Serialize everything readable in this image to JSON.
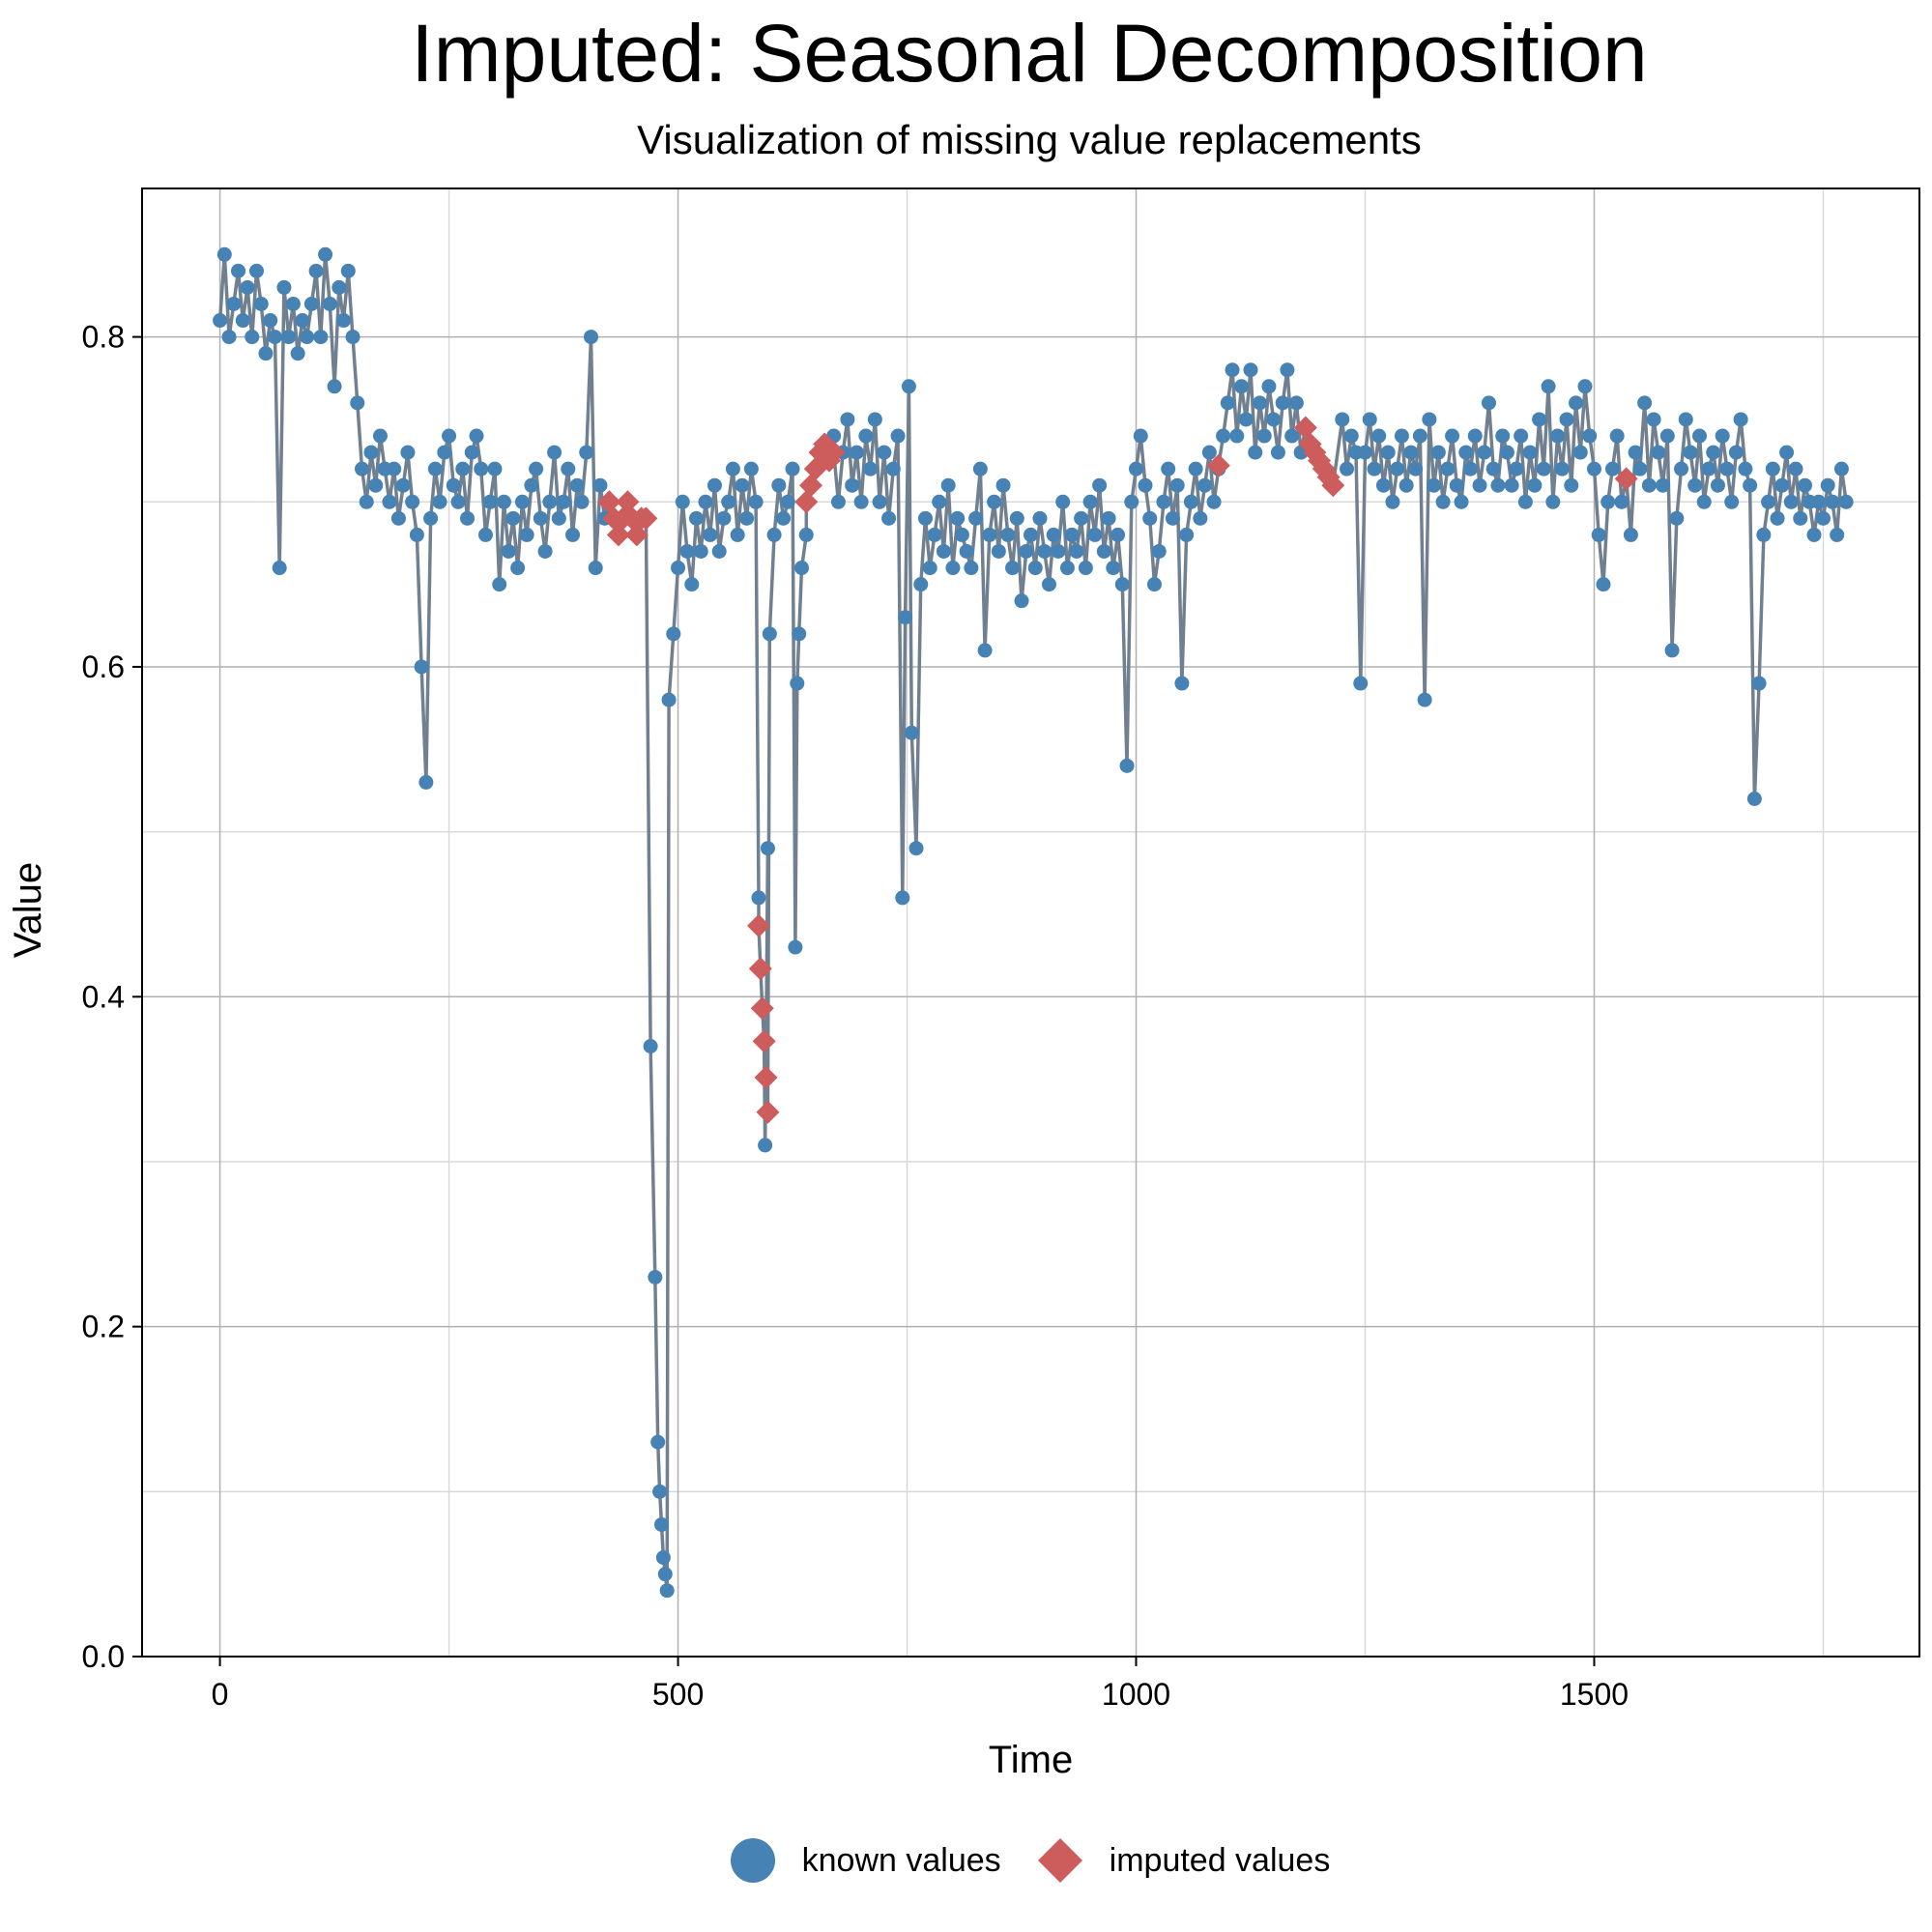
{
  "chart_data": {
    "type": "scatter",
    "title": "Imputed: Seasonal Decomposition",
    "subtitle": "Visualization of missing value replacements",
    "xlabel": "Time",
    "ylabel": "Value",
    "xlim": [
      -85,
      1855
    ],
    "ylim": [
      0.0,
      0.89
    ],
    "x_ticks": [
      0,
      500,
      1000,
      1500
    ],
    "x_tick_labels": [
      "0",
      "500",
      "1000",
      "1500"
    ],
    "y_ticks": [
      0.0,
      0.2,
      0.4,
      0.6,
      0.8
    ],
    "y_tick_labels": [
      "0.0",
      "0.2",
      "0.4",
      "0.6",
      "0.8"
    ],
    "grid": true,
    "legend_position": "bottom",
    "series": [
      {
        "name": "known values",
        "marker": "circle",
        "color": "#4682B4",
        "line_color": "#708090",
        "x": [
          0,
          5,
          10,
          15,
          20,
          25,
          30,
          35,
          40,
          45,
          50,
          55,
          60,
          65,
          70,
          75,
          80,
          85,
          90,
          95,
          100,
          105,
          110,
          115,
          120,
          125,
          130,
          135,
          140,
          145,
          150,
          155,
          160,
          165,
          170,
          175,
          180,
          185,
          190,
          195,
          200,
          205,
          210,
          215,
          220,
          225,
          230,
          235,
          240,
          245,
          250,
          255,
          260,
          265,
          270,
          275,
          280,
          285,
          290,
          295,
          300,
          305,
          310,
          315,
          320,
          325,
          330,
          335,
          340,
          345,
          350,
          355,
          360,
          365,
          370,
          375,
          380,
          385,
          390,
          395,
          400,
          405,
          410,
          415,
          420,
          470,
          475,
          478,
          480,
          482,
          484,
          486,
          488,
          490,
          495,
          500,
          505,
          510,
          515,
          520,
          525,
          530,
          535,
          540,
          545,
          550,
          555,
          560,
          565,
          570,
          575,
          580,
          585,
          588,
          595,
          598,
          600,
          605,
          610,
          615,
          620,
          625,
          628,
          630,
          632,
          635,
          640,
          670,
          675,
          680,
          685,
          690,
          695,
          700,
          705,
          710,
          715,
          720,
          725,
          730,
          735,
          740,
          745,
          748,
          752,
          755,
          760,
          765,
          770,
          775,
          780,
          785,
          790,
          795,
          800,
          805,
          810,
          815,
          820,
          825,
          830,
          835,
          840,
          845,
          850,
          855,
          860,
          865,
          870,
          875,
          880,
          885,
          890,
          895,
          900,
          905,
          910,
          915,
          920,
          925,
          930,
          935,
          940,
          945,
          950,
          955,
          960,
          965,
          970,
          975,
          980,
          985,
          990,
          995,
          1000,
          1005,
          1010,
          1015,
          1020,
          1025,
          1030,
          1035,
          1040,
          1045,
          1050,
          1055,
          1060,
          1065,
          1070,
          1075,
          1080,
          1085,
          1090,
          1095,
          1100,
          1105,
          1110,
          1115,
          1120,
          1125,
          1130,
          1135,
          1140,
          1145,
          1150,
          1155,
          1160,
          1165,
          1170,
          1175,
          1180,
          1225,
          1230,
          1235,
          1240,
          1245,
          1250,
          1255,
          1260,
          1265,
          1270,
          1275,
          1280,
          1285,
          1290,
          1295,
          1300,
          1305,
          1310,
          1315,
          1320,
          1325,
          1330,
          1335,
          1340,
          1345,
          1350,
          1355,
          1360,
          1365,
          1370,
          1375,
          1380,
          1385,
          1390,
          1395,
          1400,
          1405,
          1410,
          1415,
          1420,
          1425,
          1430,
          1435,
          1440,
          1445,
          1450,
          1455,
          1460,
          1465,
          1470,
          1475,
          1480,
          1485,
          1490,
          1495,
          1500,
          1505,
          1510,
          1515,
          1520,
          1525,
          1530,
          1540,
          1545,
          1550,
          1555,
          1560,
          1565,
          1570,
          1575,
          1580,
          1585,
          1590,
          1595,
          1600,
          1605,
          1610,
          1615,
          1620,
          1625,
          1630,
          1635,
          1640,
          1645,
          1650,
          1655,
          1660,
          1665,
          1670,
          1675,
          1680,
          1685,
          1690,
          1695,
          1700,
          1705,
          1710,
          1715,
          1720,
          1725,
          1730,
          1735,
          1740,
          1745,
          1750,
          1755,
          1760,
          1765,
          1770,
          1775
        ],
        "y": [
          0.81,
          0.85,
          0.8,
          0.82,
          0.84,
          0.81,
          0.83,
          0.8,
          0.84,
          0.82,
          0.79,
          0.81,
          0.8,
          0.66,
          0.83,
          0.8,
          0.82,
          0.79,
          0.81,
          0.8,
          0.82,
          0.84,
          0.8,
          0.85,
          0.82,
          0.77,
          0.83,
          0.81,
          0.84,
          0.8,
          0.76,
          0.72,
          0.7,
          0.73,
          0.71,
          0.74,
          0.72,
          0.7,
          0.72,
          0.69,
          0.71,
          0.73,
          0.7,
          0.68,
          0.6,
          0.53,
          0.69,
          0.72,
          0.7,
          0.73,
          0.74,
          0.71,
          0.7,
          0.72,
          0.69,
          0.73,
          0.74,
          0.72,
          0.68,
          0.7,
          0.72,
          0.65,
          0.7,
          0.67,
          0.69,
          0.66,
          0.7,
          0.68,
          0.71,
          0.72,
          0.69,
          0.67,
          0.7,
          0.73,
          0.69,
          0.7,
          0.72,
          0.68,
          0.71,
          0.7,
          0.73,
          0.8,
          0.66,
          0.71,
          0.69,
          0.37,
          0.23,
          0.13,
          0.1,
          0.08,
          0.06,
          0.05,
          0.04,
          0.58,
          0.62,
          0.66,
          0.7,
          0.67,
          0.65,
          0.69,
          0.67,
          0.7,
          0.68,
          0.71,
          0.67,
          0.69,
          0.7,
          0.72,
          0.68,
          0.71,
          0.69,
          0.72,
          0.7,
          0.46,
          0.31,
          0.49,
          0.62,
          0.68,
          0.71,
          0.69,
          0.7,
          0.72,
          0.43,
          0.59,
          0.62,
          0.66,
          0.68,
          0.74,
          0.7,
          0.73,
          0.75,
          0.71,
          0.73,
          0.7,
          0.74,
          0.72,
          0.75,
          0.7,
          0.73,
          0.69,
          0.72,
          0.74,
          0.46,
          0.63,
          0.77,
          0.56,
          0.49,
          0.65,
          0.69,
          0.66,
          0.68,
          0.7,
          0.67,
          0.71,
          0.66,
          0.69,
          0.68,
          0.67,
          0.66,
          0.69,
          0.72,
          0.61,
          0.68,
          0.7,
          0.67,
          0.71,
          0.68,
          0.66,
          0.69,
          0.64,
          0.67,
          0.68,
          0.66,
          0.69,
          0.67,
          0.65,
          0.68,
          0.67,
          0.7,
          0.66,
          0.68,
          0.67,
          0.69,
          0.66,
          0.7,
          0.68,
          0.71,
          0.67,
          0.69,
          0.66,
          0.68,
          0.65,
          0.54,
          0.7,
          0.72,
          0.74,
          0.71,
          0.69,
          0.65,
          0.67,
          0.7,
          0.72,
          0.69,
          0.71,
          0.59,
          0.68,
          0.7,
          0.72,
          0.69,
          0.71,
          0.73,
          0.7,
          0.72,
          0.74,
          0.76,
          0.78,
          0.74,
          0.77,
          0.75,
          0.78,
          0.73,
          0.76,
          0.74,
          0.77,
          0.75,
          0.73,
          0.76,
          0.78,
          0.74,
          0.76,
          0.73,
          0.75,
          0.72,
          0.74,
          0.73,
          0.59,
          0.73,
          0.75,
          0.72,
          0.74,
          0.71,
          0.73,
          0.7,
          0.72,
          0.74,
          0.71,
          0.73,
          0.72,
          0.74,
          0.58,
          0.75,
          0.71,
          0.73,
          0.7,
          0.72,
          0.74,
          0.71,
          0.7,
          0.73,
          0.72,
          0.74,
          0.71,
          0.73,
          0.76,
          0.72,
          0.71,
          0.74,
          0.73,
          0.71,
          0.72,
          0.74,
          0.7,
          0.73,
          0.71,
          0.75,
          0.72,
          0.77,
          0.7,
          0.74,
          0.72,
          0.75,
          0.71,
          0.76,
          0.73,
          0.77,
          0.74,
          0.72,
          0.68,
          0.65,
          0.7,
          0.72,
          0.74,
          0.7,
          0.68,
          0.73,
          0.72,
          0.76,
          0.71,
          0.75,
          0.73,
          0.71,
          0.74,
          0.61,
          0.69,
          0.72,
          0.75,
          0.73,
          0.71,
          0.74,
          0.7,
          0.72,
          0.73,
          0.71,
          0.74,
          0.72,
          0.7,
          0.73,
          0.75,
          0.72,
          0.71,
          0.52,
          0.59,
          0.68,
          0.7,
          0.72,
          0.69,
          0.71,
          0.73,
          0.7,
          0.72,
          0.69,
          0.71,
          0.7,
          0.68,
          0.7,
          0.69,
          0.71,
          0.7,
          0.68,
          0.72,
          0.7
        ]
      },
      {
        "name": "imputed values",
        "marker": "diamond",
        "color": "#CD5C5C",
        "x": [
          425,
          430,
          435,
          440,
          445,
          450,
          455,
          460,
          465,
          588,
          590,
          592,
          594,
          596,
          598,
          640,
          645,
          650,
          655,
          660,
          665,
          670,
          1090,
          1185,
          1190,
          1195,
          1200,
          1205,
          1210,
          1215,
          1535
        ],
        "y": [
          0.7,
          0.69,
          0.68,
          0.69,
          0.7,
          0.69,
          0.68,
          0.69,
          0.69,
          0.443,
          0.417,
          0.393,
          0.373,
          0.351,
          0.33,
          0.7,
          0.71,
          0.72,
          0.73,
          0.735,
          0.725,
          0.73,
          0.722,
          0.745,
          0.735,
          0.73,
          0.725,
          0.72,
          0.715,
          0.71,
          0.714
        ]
      }
    ]
  }
}
